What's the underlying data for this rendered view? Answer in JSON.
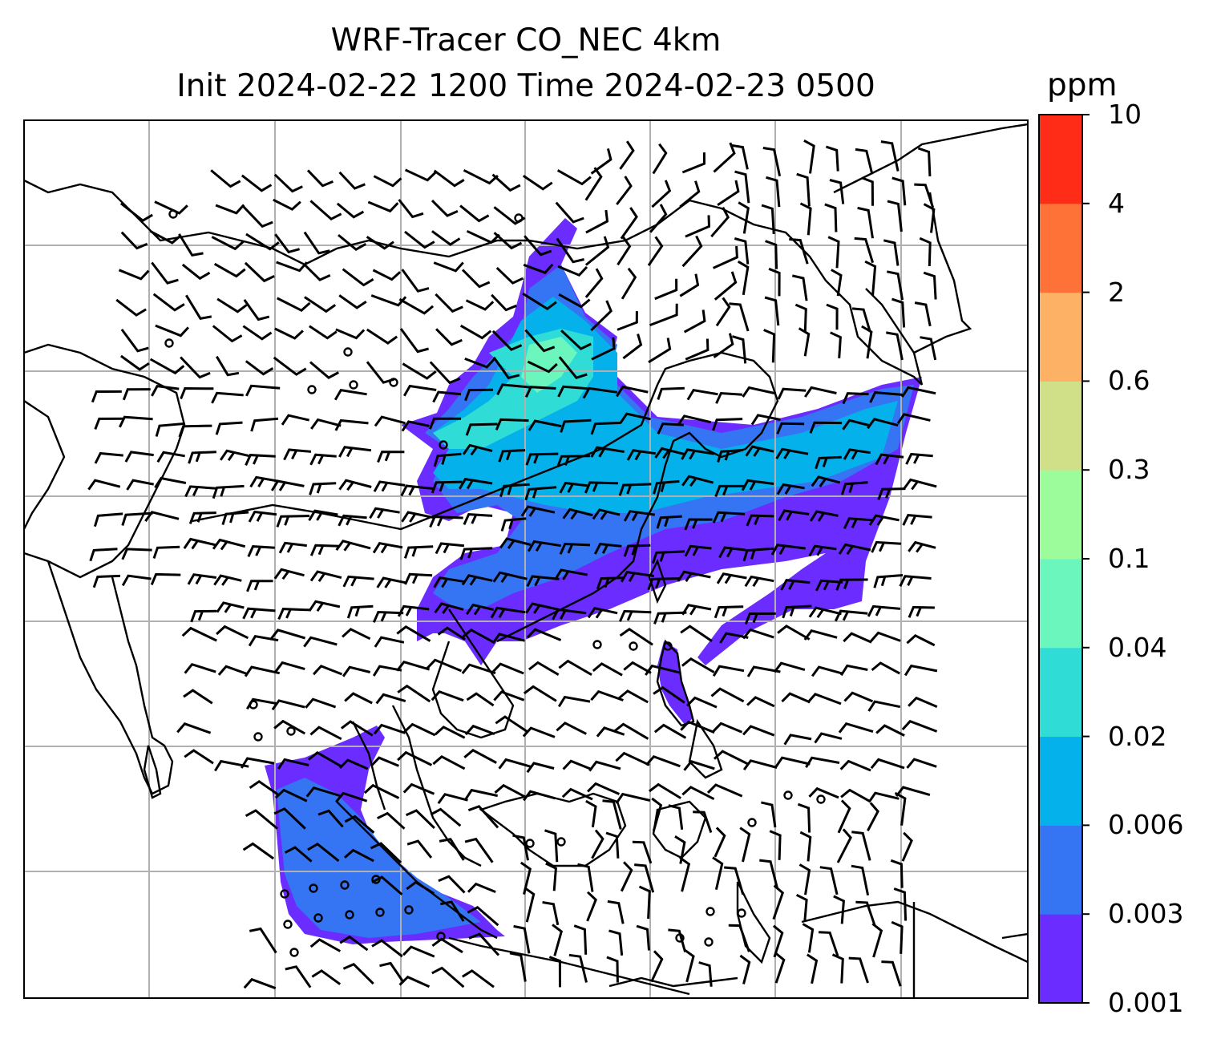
{
  "title": {
    "line1": "WRF-Tracer CO_NEC 4km",
    "line2": "Init 2024-02-22 1200 Time 2024-02-23 0500"
  },
  "colorbar": {
    "unit": "ppm",
    "levels": [
      "0.001",
      "0.003",
      "0.006",
      "0.02",
      "0.04",
      "0.1",
      "0.3",
      "0.6",
      "2",
      "4",
      "10"
    ],
    "colors": [
      "#6a2cff",
      "#3575f3",
      "#04b1ea",
      "#2fdcd6",
      "#6af6bd",
      "#9cfc9c",
      "#cfe089",
      "#fdb164",
      "#ff7237",
      "#ff2d17"
    ]
  },
  "map": {
    "gridlines": true,
    "coastlines": true,
    "country_borders": true,
    "wind_barbs": true,
    "plume_colors": {
      "lowest": "#6a2cff",
      "low": "#3575f3",
      "mid": "#04b1ea",
      "high": "#2fdcd6",
      "peak": "#6af6bd"
    }
  }
}
